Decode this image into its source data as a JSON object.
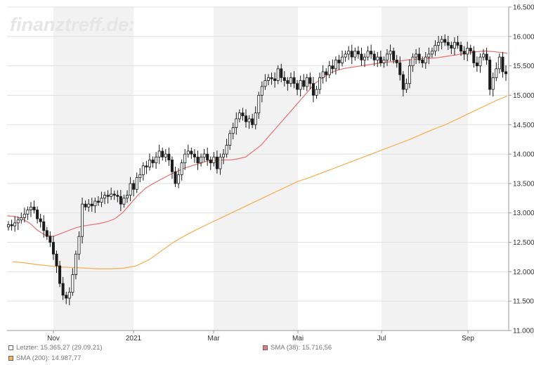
{
  "watermark": "finanztreff.de:",
  "colors": {
    "candle": "#1a1a1a",
    "sma38": "#e8787a",
    "sma200": "#f7b25a",
    "band": "#f2f2f2",
    "grid": "#e0e0e0"
  },
  "legend": {
    "last": "Letzter: 15.365,27 (29.09.21)",
    "sma38": "SMA (38): 15.716,56",
    "sma200": "SMA (200): 14.987,77"
  },
  "chart_data": {
    "type": "candlestick",
    "title": "",
    "x_ticks": [
      "Nov",
      "2021",
      "Mar",
      "Mai",
      "Jul",
      "Sep"
    ],
    "y_ticks": [
      "16.500",
      "16.000",
      "15.500",
      "15.000",
      "14.500",
      "14.000",
      "13.500",
      "13.000",
      "12.500",
      "12.000",
      "11.500",
      "11.000"
    ],
    "ylim": [
      11000,
      16500
    ],
    "last_close": 15365.27,
    "close_series": [
      12800,
      12780,
      12830,
      12880,
      12920,
      12980,
      13050,
      13100,
      13050,
      12900,
      12850,
      12700,
      12600,
      12500,
      12300,
      12100,
      11800,
      11600,
      11550,
      11650,
      11950,
      12300,
      12600,
      13150,
      13100,
      13150,
      13120,
      13200,
      13180,
      13250,
      13300,
      13280,
      13320,
      13300,
      13280,
      13150,
      13250,
      13300,
      13500,
      13400,
      13600,
      13650,
      13800,
      13780,
      13900,
      13850,
      13950,
      14050,
      13950,
      14000,
      13900,
      13700,
      13500,
      13650,
      13850,
      14000,
      14050,
      14000,
      13950,
      13850,
      13950,
      14000,
      13900,
      13850,
      13950,
      13750,
      13950,
      14000,
      14150,
      14350,
      14450,
      14600,
      14700,
      14650,
      14550,
      14600,
      14500,
      14700,
      15000,
      15150,
      15250,
      15300,
      15280,
      15250,
      15450,
      15300,
      15250,
      15200,
      15300,
      15200,
      15100,
      15250,
      15150,
      15300,
      15200,
      15000,
      15100,
      15300,
      15400,
      15350,
      15500,
      15450,
      15600,
      15550,
      15650,
      15700,
      15750,
      15650,
      15750,
      15700,
      15600,
      15650,
      15750,
      15700,
      15600,
      15650,
      15550,
      15600,
      15700,
      15750,
      15600,
      15550,
      15350,
      15100,
      15200,
      15500,
      15650,
      15700,
      15600,
      15550,
      15650,
      15700,
      15750,
      15850,
      15900,
      15950,
      15900,
      15850,
      15800,
      15900,
      15850,
      15750,
      15700,
      15800,
      15750,
      15550,
      15500,
      15650,
      15700,
      15600,
      15100,
      15300,
      15450,
      15650,
      15400,
      15365
    ],
    "sma38_series": [
      12950,
      12940,
      12900,
      12820,
      12700,
      12620,
      12600,
      12650,
      12700,
      12750,
      12780,
      12800,
      12820,
      12850,
      12900,
      13000,
      13150,
      13300,
      13420,
      13500,
      13570,
      13640,
      13700,
      13760,
      13800,
      13840,
      13880,
      13900,
      13900,
      13900,
      13920,
      13950,
      14050,
      14150,
      14300,
      14450,
      14600,
      14750,
      14900,
      15050,
      15200,
      15300,
      15380,
      15430,
      15460,
      15480,
      15500,
      15520,
      15540,
      15560,
      15570,
      15580,
      15600,
      15610,
      15620,
      15630,
      15640,
      15660,
      15680,
      15700,
      15720,
      15740,
      15750,
      15745,
      15730,
      15716
    ],
    "sma200_series": [
      12170,
      12150,
      12120,
      12100,
      12080,
      12070,
      12060,
      12050,
      12050,
      12060,
      12100,
      12200,
      12350,
      12500,
      12620,
      12730,
      12830,
      12930,
      13030,
      13130,
      13230,
      13330,
      13430,
      13530,
      13600,
      13680,
      13760,
      13840,
      13920,
      14000,
      14080,
      14160,
      14240,
      14330,
      14420,
      14500,
      14600,
      14700,
      14800,
      14900,
      14988
    ]
  }
}
